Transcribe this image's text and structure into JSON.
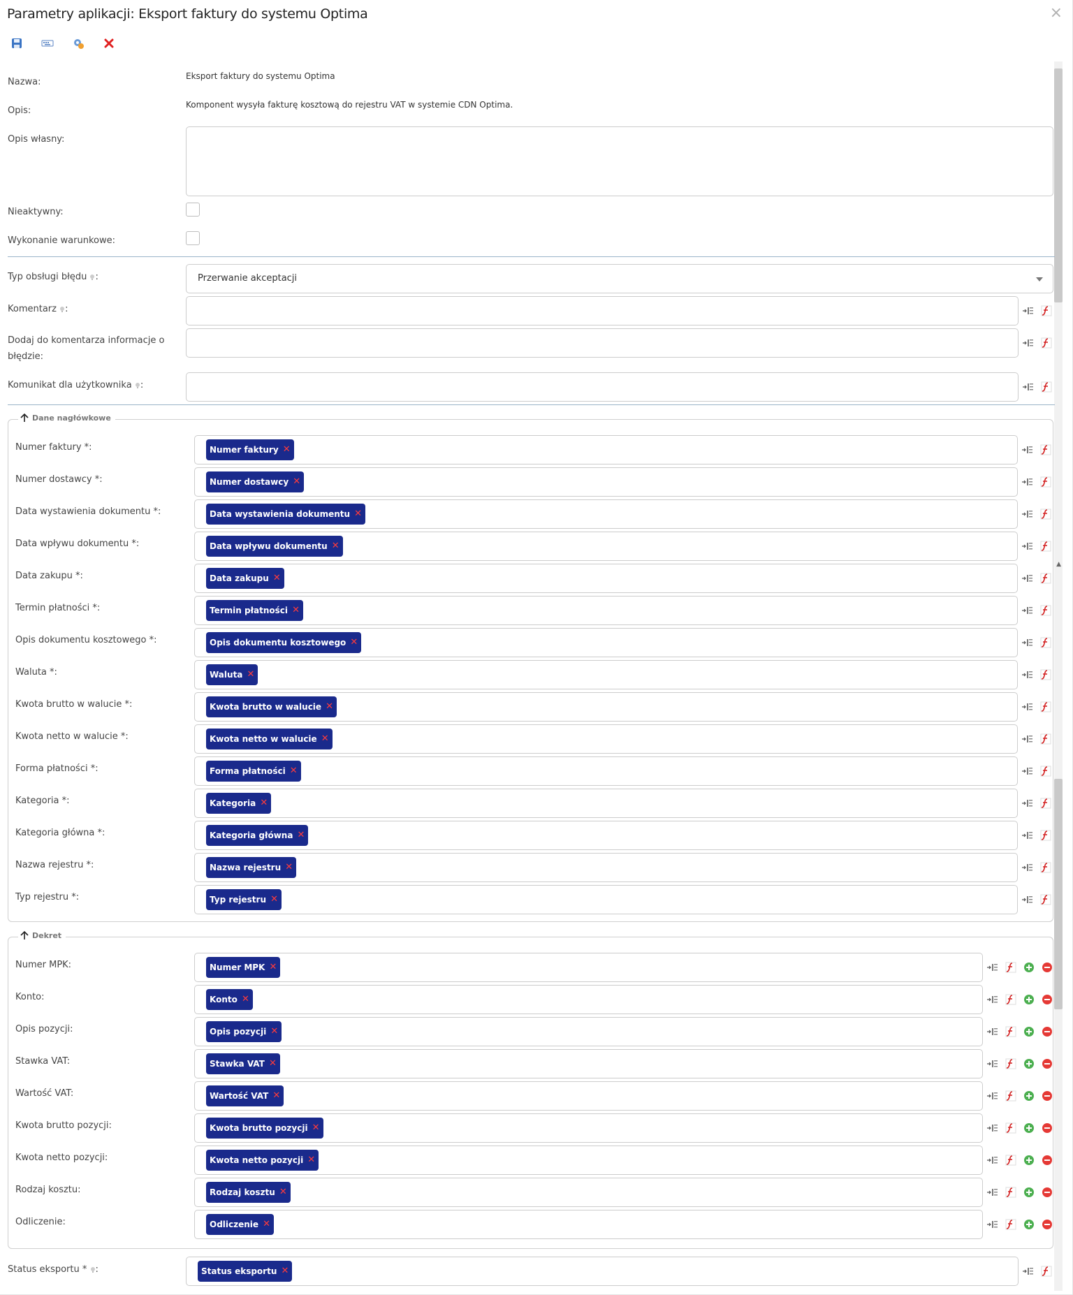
{
  "window": {
    "title": "Parametry aplikacji: Eksport faktury do systemu Optima",
    "close_icon": "close-icon"
  },
  "toolbar": {
    "buttons": [
      "save-icon",
      "keyboard-icon",
      "settings-icon",
      "delete-icon"
    ]
  },
  "general": {
    "name_label": "Nazwa:",
    "name_value": "Eksport faktury do systemu Optima",
    "desc_label": "Opis:",
    "desc_value": "Komponent wysyła fakturę kosztową do rejestru VAT w systemie CDN Optima.",
    "own_desc_label": "Opis własny:",
    "own_desc_value": "",
    "inactive_label": "Nieaktywny:",
    "conditional_label": "Wykonanie warunkowe:"
  },
  "error_handling": {
    "type_label": "Typ obsługi błędu",
    "type_value": "Przerwanie akceptacji",
    "comment_label": "Komentarz",
    "add_error_label_1": "Dodaj do komentarza informacje o",
    "add_error_label_2": "błędzie:",
    "user_msg_label": "Komunikat dla użytkownika",
    "colon": ":"
  },
  "header_section": {
    "legend": "Dane nagłówkowe",
    "fields": [
      {
        "label": "Numer faktury *:",
        "tag": "Numer faktury"
      },
      {
        "label": "Numer dostawcy *:",
        "tag": "Numer dostawcy"
      },
      {
        "label": "Data wystawienia dokumentu *:",
        "tag": "Data wystawienia dokumentu"
      },
      {
        "label": "Data wpływu dokumentu *:",
        "tag": "Data wpływu dokumentu"
      },
      {
        "label": "Data zakupu *:",
        "tag": "Data zakupu"
      },
      {
        "label": "Termin płatności *:",
        "tag": "Termin płatności"
      },
      {
        "label": "Opis dokumentu kosztowego *:",
        "tag": "Opis dokumentu kosztowego"
      },
      {
        "label": "Waluta *:",
        "tag": "Waluta"
      },
      {
        "label": "Kwota brutto w walucie *:",
        "tag": "Kwota brutto w walucie"
      },
      {
        "label": "Kwota netto w walucie *:",
        "tag": "Kwota netto w walucie"
      },
      {
        "label": "Forma płatności *:",
        "tag": "Forma płatności"
      },
      {
        "label": "Kategoria *:",
        "tag": "Kategoria"
      },
      {
        "label": "Kategoria główna *:",
        "tag": "Kategoria główna"
      },
      {
        "label": "Nazwa rejestru *:",
        "tag": "Nazwa rejestru"
      },
      {
        "label": "Typ rejestru *:",
        "tag": "Typ rejestru"
      }
    ]
  },
  "dekret_section": {
    "legend": "Dekret",
    "fields": [
      {
        "label": "Numer MPK:",
        "tag": "Numer MPK"
      },
      {
        "label": "Konto:",
        "tag": "Konto"
      },
      {
        "label": "Opis pozycji:",
        "tag": "Opis pozycji"
      },
      {
        "label": "Stawka VAT:",
        "tag": "Stawka VAT"
      },
      {
        "label": "Wartość VAT:",
        "tag": "Wartość VAT"
      },
      {
        "label": "Kwota brutto pozycji:",
        "tag": "Kwota brutto pozycji"
      },
      {
        "label": "Kwota netto pozycji:",
        "tag": "Kwota netto pozycji"
      },
      {
        "label": "Rodzaj kosztu:",
        "tag": "Rodzaj kosztu"
      },
      {
        "label": "Odliczenie:",
        "tag": "Odliczenie"
      }
    ]
  },
  "status": {
    "label": "Status eksportu *",
    "colon": ":",
    "tag": "Status eksportu"
  },
  "colors": {
    "tag_bg": "#1a2a8c",
    "tag_x": "#ff3b3b",
    "separator": "#9ab3c8"
  }
}
